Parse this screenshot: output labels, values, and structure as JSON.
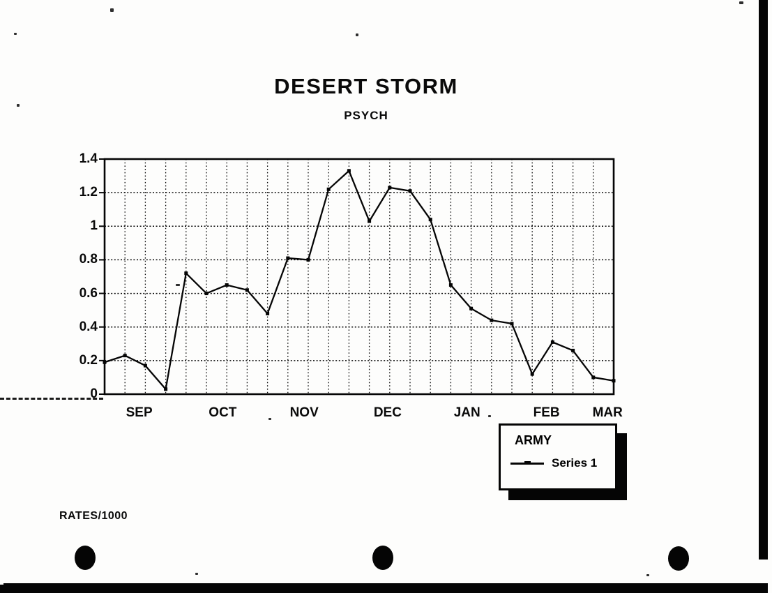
{
  "page": {
    "background_color": "#fdfdfc",
    "ink_color": "#050505"
  },
  "title": "DESERT STORM",
  "subtitle": "PSYCH",
  "footnote": "RATES/1000",
  "legend": {
    "group_label": "ARMY",
    "series_label": "Series 1"
  },
  "chart_data": {
    "type": "line",
    "title": "DESERT STORM",
    "subtitle": "PSYCH",
    "units_note": "RATES/1000",
    "grid": true,
    "legend_position": "below-right",
    "x_axis": {
      "unit": "weekly data points",
      "month_labels": [
        "SEP",
        "OCT",
        "NOV",
        "DEC",
        "JAN",
        "FEB",
        "MAR"
      ]
    },
    "y_axis": {
      "min": 0,
      "max": 1.4,
      "tick_interval": 0.2,
      "tick_labels_top_to_bottom": [
        "1.4",
        "1.2",
        "1",
        "0.8",
        "0.6",
        "0.4",
        "0.2",
        "0"
      ]
    },
    "series": [
      {
        "name": "Series 1",
        "group": "ARMY",
        "values": [
          0.19,
          0.23,
          0.17,
          0.03,
          0.72,
          0.6,
          0.65,
          0.62,
          0.48,
          0.81,
          0.8,
          1.22,
          1.33,
          1.03,
          1.23,
          1.21,
          1.04,
          0.65,
          0.51,
          0.44,
          0.42,
          0.12,
          0.31,
          0.26,
          0.1,
          0.08
        ]
      }
    ]
  }
}
